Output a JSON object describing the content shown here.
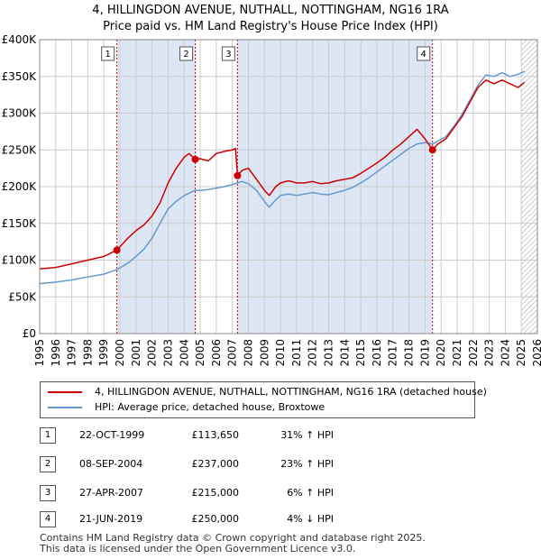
{
  "title_line1": "4, HILLINGDON AVENUE, NUTHALL, NOTTINGHAM, NG16 1RA",
  "title_line2": "Price paid vs. HM Land Registry's House Price Index (HPI)",
  "legend": {
    "property": "4, HILLINGDON AVENUE, NUTHALL, NOTTINGHAM, NG16 1RA (detached house)",
    "hpi": "HPI: Average price, detached house, Broxtowe"
  },
  "colors": {
    "property": "#cc0000",
    "hpi": "#6699cc",
    "shade": "#dde6f5",
    "grid": "#cccccc",
    "marker_line": "#cc0000"
  },
  "sales": [
    {
      "num": "1",
      "date": "22-OCT-1999",
      "price": "£113,650",
      "hpi": "31% ↑ HPI"
    },
    {
      "num": "2",
      "date": "08-SEP-2004",
      "price": "£237,000",
      "hpi": "23% ↑ HPI"
    },
    {
      "num": "3",
      "date": "27-APR-2007",
      "price": "£215,000",
      "hpi": "6% ↑ HPI"
    },
    {
      "num": "4",
      "date": "21-JUN-2019",
      "price": "£250,000",
      "hpi": "4% ↓ HPI"
    }
  ],
  "footer_line1": "Contains HM Land Registry data © Crown copyright and database right 2025.",
  "footer_line2": "This data is licensed under the Open Government Licence v3.0.",
  "chart_data": {
    "type": "line",
    "title": "4, HILLINGDON AVENUE, NUTHALL, NOTTINGHAM, NG16 1RA",
    "xlim": [
      1995,
      2026
    ],
    "ylim": [
      0,
      400000
    ],
    "x_ticks": [
      1995,
      1996,
      1997,
      1998,
      1999,
      2000,
      2001,
      2002,
      2003,
      2004,
      2005,
      2006,
      2007,
      2008,
      2009,
      2010,
      2011,
      2012,
      2013,
      2014,
      2015,
      2016,
      2017,
      2018,
      2019,
      2020,
      2021,
      2022,
      2023,
      2024,
      2025,
      2026
    ],
    "y_ticks": [
      0,
      50000,
      100000,
      150000,
      200000,
      250000,
      300000,
      350000,
      400000
    ],
    "y_tick_labels": [
      "£0",
      "£50K",
      "£100K",
      "£150K",
      "£200K",
      "£250K",
      "£300K",
      "£350K",
      "£400K"
    ],
    "shaded_ranges": [
      [
        1999.81,
        2004.69
      ],
      [
        2007.32,
        2019.47
      ]
    ],
    "hatch_from": 2025.0,
    "sale_points": [
      {
        "label": "1",
        "x": 1999.81,
        "y": 113650
      },
      {
        "label": "2",
        "x": 2004.69,
        "y": 237000
      },
      {
        "label": "3",
        "x": 2007.32,
        "y": 215000
      },
      {
        "label": "4",
        "x": 2019.47,
        "y": 250000
      }
    ],
    "series": [
      {
        "name": "4, HILLINGDON AVENUE, NUTHALL, NOTTINGHAM, NG16 1RA (detached house)",
        "x": [
          1995.0,
          1996.0,
          1997.0,
          1998.0,
          1999.0,
          1999.81,
          2000.5,
          2001.0,
          2001.5,
          2002.0,
          2002.5,
          2003.0,
          2003.5,
          2004.0,
          2004.3,
          2004.69,
          2005.0,
          2005.5,
          2006.0,
          2006.5,
          2007.0,
          2007.2,
          2007.32,
          2007.6,
          2008.0,
          2008.5,
          2009.0,
          2009.3,
          2009.7,
          2010.0,
          2010.5,
          2011.0,
          2011.5,
          2012.0,
          2012.5,
          2013.0,
          2013.5,
          2014.0,
          2014.5,
          2015.0,
          2015.5,
          2016.0,
          2016.5,
          2017.0,
          2017.5,
          2018.0,
          2018.5,
          2019.0,
          2019.47,
          2019.8,
          2020.3,
          2020.8,
          2021.3,
          2021.8,
          2022.3,
          2022.8,
          2023.3,
          2023.8,
          2024.3,
          2024.8,
          2025.2
        ],
        "values": [
          88000,
          90000,
          95000,
          100000,
          105000,
          113650,
          130000,
          140000,
          148000,
          160000,
          178000,
          205000,
          225000,
          240000,
          245000,
          237000,
          238000,
          235000,
          245000,
          248000,
          250000,
          252000,
          215000,
          222000,
          225000,
          210000,
          195000,
          188000,
          200000,
          205000,
          208000,
          205000,
          205000,
          207000,
          204000,
          205000,
          208000,
          210000,
          212000,
          218000,
          225000,
          232000,
          240000,
          250000,
          258000,
          268000,
          278000,
          265000,
          250000,
          258000,
          265000,
          280000,
          295000,
          315000,
          335000,
          345000,
          340000,
          345000,
          340000,
          335000,
          342000
        ]
      },
      {
        "name": "HPI: Average price, detached house, Broxtowe",
        "x": [
          1995.0,
          1996.0,
          1997.0,
          1998.0,
          1999.0,
          1999.81,
          2000.5,
          2001.0,
          2001.5,
          2002.0,
          2002.5,
          2003.0,
          2003.5,
          2004.0,
          2004.69,
          2005.0,
          2005.5,
          2006.0,
          2006.5,
          2007.0,
          2007.32,
          2007.6,
          2008.0,
          2008.5,
          2009.0,
          2009.3,
          2009.7,
          2010.0,
          2010.5,
          2011.0,
          2011.5,
          2012.0,
          2012.5,
          2013.0,
          2013.5,
          2014.0,
          2014.5,
          2015.0,
          2015.5,
          2016.0,
          2016.5,
          2017.0,
          2017.5,
          2018.0,
          2018.5,
          2019.0,
          2019.47,
          2019.8,
          2020.3,
          2020.8,
          2021.3,
          2021.8,
          2022.3,
          2022.8,
          2023.3,
          2023.8,
          2024.3,
          2024.8,
          2025.2
        ],
        "values": [
          68000,
          70000,
          73000,
          77000,
          81000,
          87000,
          96000,
          105000,
          115000,
          130000,
          150000,
          170000,
          180000,
          188000,
          195000,
          195000,
          196000,
          198000,
          200000,
          203000,
          205000,
          207000,
          204000,
          195000,
          180000,
          172000,
          182000,
          188000,
          190000,
          188000,
          190000,
          192000,
          190000,
          189000,
          192000,
          195000,
          199000,
          205000,
          212000,
          220000,
          228000,
          236000,
          244000,
          252000,
          258000,
          260000,
          258000,
          262000,
          268000,
          282000,
          298000,
          318000,
          338000,
          352000,
          350000,
          355000,
          350000,
          353000,
          357000
        ]
      }
    ]
  }
}
